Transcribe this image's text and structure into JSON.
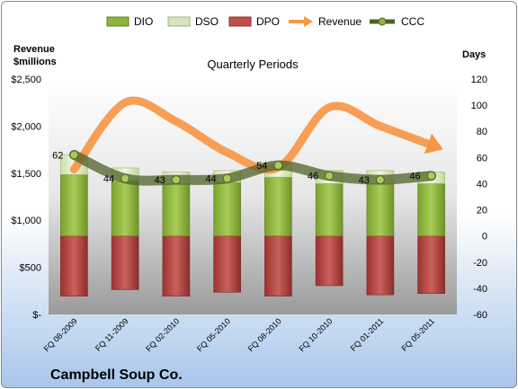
{
  "chart_data": {
    "type": "bar",
    "title": "Quarterly Periods",
    "company": "Campbell Soup Co.",
    "left_axis_label_line1": "Revenue",
    "left_axis_label_line2": "$millions",
    "right_axis_label": "Days",
    "categories": [
      "FQ 08-2009",
      "FQ 11-2009",
      "FQ 02-2010",
      "FQ 05-2010",
      "FQ 08-2010",
      "FQ 10-2010",
      "FQ 01-2011",
      "FQ 05-2011"
    ],
    "left_ticks": [
      "$-",
      "$500",
      "$1,000",
      "$1,500",
      "$2,000",
      "$2,500"
    ],
    "left_tick_values": [
      0,
      500,
      1000,
      1500,
      2000,
      2500
    ],
    "right_ticks": [
      "-60",
      "-40",
      "-20",
      "0",
      "20",
      "40",
      "60",
      "80",
      "100",
      "120"
    ],
    "right_tick_values": [
      -60,
      -40,
      -20,
      0,
      20,
      40,
      60,
      80,
      100,
      120
    ],
    "ylim_left": [
      0,
      2500
    ],
    "ylim_right": [
      -60,
      120
    ],
    "series": [
      {
        "name": "DIO",
        "axis": "right",
        "kind": "stacked-bar",
        "color": "#8db33a",
        "values": [
          47,
          42,
          40,
          41,
          45,
          40,
          40,
          40
        ]
      },
      {
        "name": "DSO",
        "axis": "right",
        "kind": "stacked-bar",
        "color": "#d7e4bd",
        "values": [
          15,
          10,
          9,
          9,
          10,
          10,
          10,
          9
        ]
      },
      {
        "name": "DPO",
        "axis": "right",
        "kind": "negative-bar",
        "color": "#c0504d",
        "values": [
          -46,
          -41,
          -46,
          -43,
          -46,
          -38,
          -45,
          -44
        ]
      },
      {
        "name": "Revenue",
        "axis": "left",
        "kind": "arrow-line",
        "color": "#f79646",
        "values": [
          1540,
          2250,
          2050,
          1720,
          1560,
          2200,
          2000,
          1800
        ]
      },
      {
        "name": "CCC",
        "axis": "right",
        "kind": "line",
        "color": "#4f6228",
        "values": [
          62,
          44,
          43,
          44,
          54,
          46,
          43,
          46
        ]
      }
    ],
    "ccc_labels": [
      "62",
      "44",
      "43",
      "44",
      "54",
      "46",
      "43",
      "46"
    ],
    "legend_position": "top",
    "grid": false
  }
}
